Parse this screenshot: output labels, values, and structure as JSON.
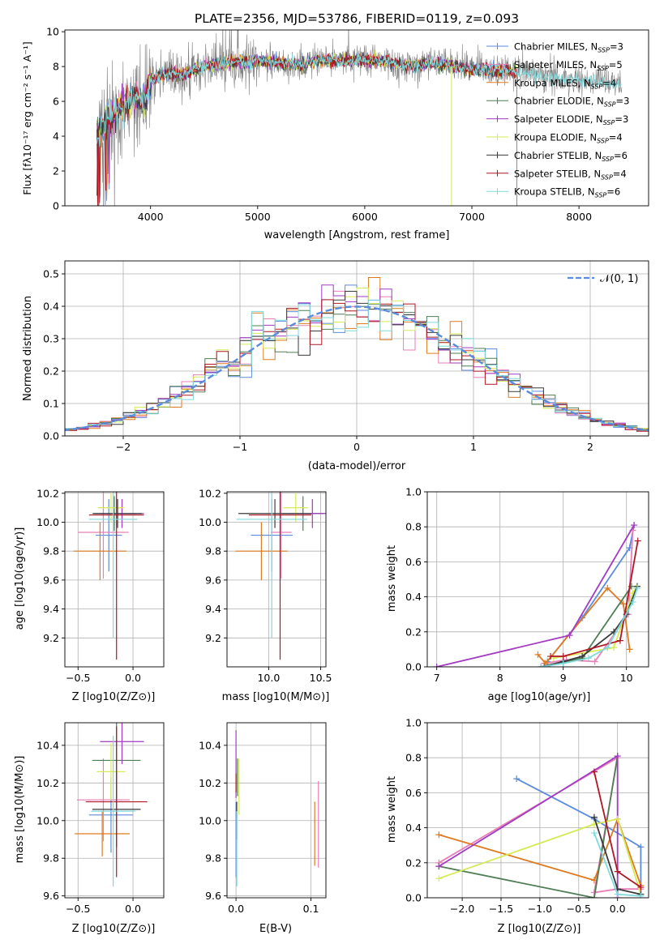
{
  "figure_title": "PLATE=2356, MJD=53786, FIBERID=0119, z=0.093",
  "colors": {
    "chabrier_miles": "#5b8bdc",
    "salpeter_miles": "#e87fb8",
    "kroupa_miles": "#e07a1f",
    "chabrier_elodie": "#4f7d55",
    "salpeter_elodie": "#a23ac2",
    "kroupa_elodie": "#d6ea55",
    "chabrier_stelib": "#3a3a3a",
    "salpeter_stelib": "#b01624",
    "kroupa_stelib": "#7fd9dc",
    "data_spectrum": "#808080",
    "grid": "#b0b0b0"
  },
  "chart_data": [
    {
      "id": "spectrum",
      "type": "line",
      "title": "PLATE=2356, MJD=53786, FIBERID=0119, z=0.093",
      "xlabel": "wavelength [Angstrom, rest frame]",
      "ylabel": "Flux [fλ10⁻¹⁷ erg cm⁻² s⁻¹ A⁻¹]",
      "xlim": [
        3200,
        8650
      ],
      "ylim": [
        0,
        10.1
      ],
      "xticks": [
        4000,
        5000,
        6000,
        7000,
        8000
      ],
      "yticks": [
        0,
        2,
        4,
        6,
        8,
        10
      ],
      "grid": false,
      "legend_position": "top-right",
      "legend": [
        "Chabrier MILES, N_SSP=3",
        "Salpeter MILES, N_SSP=5",
        "Kroupa MILES, N_SSP=4",
        "Chabrier ELODIE, N_SSP=3",
        "Salpeter ELODIE, N_SSP=3",
        "Kroupa ELODIE, N_SSP=4",
        "Chabrier STELIB, N_SSP=6",
        "Salpeter STELIB, N_SSP=4",
        "Kroupa STELIB, N_SSP=6"
      ],
      "continuum": {
        "x": [
          3500,
          3550,
          3600,
          3650,
          3700,
          3750,
          3800,
          3850,
          3900,
          3950,
          4000,
          4100,
          4200,
          4300,
          4400,
          4500,
          4600,
          4700,
          4800,
          4900,
          5000,
          5200,
          5400,
          5600,
          5800,
          6000,
          6200,
          6400,
          6600,
          6800,
          7000,
          7200,
          7400,
          7600,
          7800,
          8000,
          8200,
          8400
        ],
        "y": [
          4.2,
          4.6,
          5.0,
          5.3,
          5.6,
          5.8,
          6.0,
          6.1,
          6.2,
          6.0,
          7.2,
          7.5,
          7.6,
          7.5,
          7.8,
          8.0,
          8.1,
          8.2,
          8.3,
          8.3,
          8.3,
          8.2,
          8.1,
          8.4,
          8.3,
          8.4,
          8.3,
          8.0,
          8.2,
          8.1,
          7.8,
          7.8,
          7.7,
          7.5,
          7.3,
          7.2,
          7.1,
          7.0
        ]
      },
      "model_end_wavelength": 7420
    },
    {
      "id": "residual-histogram",
      "type": "bar",
      "xlabel": "(data-model)/error",
      "ylabel": "Normed distribution",
      "xlim": [
        -2.5,
        2.5
      ],
      "ylim": [
        0,
        0.54
      ],
      "xticks": [
        -2,
        -1,
        0,
        1,
        2
      ],
      "yticks": [
        0.0,
        0.1,
        0.2,
        0.3,
        0.4,
        0.5
      ],
      "grid": true,
      "legend_position": "top-right",
      "reference_curve": "𝒩(0, 1)",
      "bin_width": 0.1
    },
    {
      "id": "age-vs-Z",
      "type": "scatter",
      "xlabel": "Z [log10(Z/Z⊙)]",
      "ylabel": "age [log10(age/yr)]",
      "xlim": [
        -0.62,
        0.28
      ],
      "ylim": [
        9.0,
        10.21
      ],
      "xticks": [
        -0.5,
        0.0
      ],
      "yticks": [
        9.2,
        9.4,
        9.6,
        9.8,
        10.0,
        10.2
      ],
      "grid": true,
      "points": [
        {
          "model": "chabrier_miles",
          "x": -0.22,
          "y": 9.91,
          "xerr": 0.12,
          "yerr": 0.25
        },
        {
          "model": "salpeter_miles",
          "x": -0.27,
          "y": 9.93,
          "xerr": 0.23,
          "yerr": 0.32
        },
        {
          "model": "kroupa_miles",
          "x": -0.3,
          "y": 9.8,
          "xerr": 0.24,
          "yerr": 0.2
        },
        {
          "model": "chabrier_elodie",
          "x": -0.17,
          "y": 10.06,
          "xerr": 0.2,
          "yerr": 0.12
        },
        {
          "model": "salpeter_elodie",
          "x": -0.1,
          "y": 10.06,
          "xerr": 0.2,
          "yerr": 0.1
        },
        {
          "model": "kroupa_elodie",
          "x": -0.2,
          "y": 10.1,
          "xerr": 0.12,
          "yerr": 0.1
        },
        {
          "model": "chabrier_stelib",
          "x": -0.14,
          "y": 10.06,
          "xerr": 0.22,
          "yerr": 0.1
        },
        {
          "model": "salpeter_stelib",
          "x": -0.15,
          "y": 10.05,
          "xerr": 0.25,
          "yerr": 1.0
        },
        {
          "model": "kroupa_stelib",
          "x": -0.18,
          "y": 10.02,
          "xerr": 0.22,
          "yerr": 0.82
        }
      ]
    },
    {
      "id": "age-vs-mass",
      "type": "scatter",
      "xlabel": "mass [log10(M/M⊙)]",
      "ylabel": "",
      "xlim": [
        9.6,
        10.55
      ],
      "ylim": [
        9.0,
        10.21
      ],
      "xticks": [
        10.0,
        10.5
      ],
      "yticks": [
        9.2,
        9.4,
        9.6,
        9.8,
        10.0,
        10.2
      ],
      "grid": true,
      "points": [
        {
          "model": "chabrier_miles",
          "x": 10.03,
          "y": 9.91,
          "xerr": 0.2,
          "yerr": 0.25
        },
        {
          "model": "salpeter_miles",
          "x": 10.12,
          "y": 9.93,
          "xerr": 0.1,
          "yerr": 0.32
        },
        {
          "model": "kroupa_miles",
          "x": 9.93,
          "y": 9.8,
          "xerr": 0.25,
          "yerr": 0.2
        },
        {
          "model": "chabrier_elodie",
          "x": 10.33,
          "y": 10.06,
          "xerr": 0.2,
          "yerr": 0.12
        },
        {
          "model": "salpeter_elodie",
          "x": 10.42,
          "y": 10.06,
          "xerr": 0.22,
          "yerr": 0.1
        },
        {
          "model": "kroupa_elodie",
          "x": 10.26,
          "y": 10.1,
          "xerr": 0.12,
          "yerr": 0.1
        },
        {
          "model": "chabrier_stelib",
          "x": 10.06,
          "y": 10.06,
          "xerr": 0.35,
          "yerr": 0.1
        },
        {
          "model": "salpeter_stelib",
          "x": 10.11,
          "y": 10.05,
          "xerr": 0.3,
          "yerr": 1.0
        },
        {
          "model": "kroupa_stelib",
          "x": 10.03,
          "y": 10.02,
          "xerr": 0.34,
          "yerr": 0.82
        }
      ]
    },
    {
      "id": "weight-vs-age",
      "type": "line",
      "xlabel": "age [log10(age/yr)]",
      "ylabel": "mass weight",
      "xlim": [
        6.85,
        10.35
      ],
      "ylim": [
        0,
        1.0
      ],
      "xticks": [
        7,
        8,
        9,
        10
      ],
      "yticks": [
        0.0,
        0.2,
        0.4,
        0.6,
        0.8,
        1.0
      ],
      "grid": true,
      "series": [
        {
          "model": "chabrier_miles",
          "x": [
            8.75,
            9.3,
            10.05,
            10.12
          ],
          "y": [
            0.03,
            0.28,
            0.68,
            0.81
          ]
        },
        {
          "model": "salpeter_miles",
          "x": [
            8.7,
            9.05,
            9.5,
            10.03,
            10.1
          ],
          "y": [
            0.02,
            0.04,
            0.03,
            0.3,
            0.78
          ]
        },
        {
          "model": "kroupa_miles",
          "x": [
            8.6,
            8.72,
            9.7,
            9.95,
            10.05
          ],
          "y": [
            0.07,
            0.02,
            0.45,
            0.36,
            0.1
          ]
        },
        {
          "model": "chabrier_elodie",
          "x": [
            8.7,
            9.3,
            10.08
          ],
          "y": [
            0.0,
            0.05,
            0.46
          ]
        },
        {
          "model": "salpeter_elodie",
          "x": [
            7.0,
            9.1,
            10.12
          ],
          "y": [
            0.0,
            0.18,
            0.81
          ]
        },
        {
          "model": "kroupa_elodie",
          "x": [
            8.85,
            9.8,
            10.1,
            10.15
          ],
          "y": [
            0.05,
            0.11,
            0.42,
            0.45
          ]
        },
        {
          "model": "chabrier_stelib",
          "x": [
            8.65,
            9.0,
            9.3,
            9.8,
            10.0,
            10.17
          ],
          "y": [
            0.0,
            0.03,
            0.06,
            0.2,
            0.3,
            0.46
          ]
        },
        {
          "model": "salpeter_stelib",
          "x": [
            8.8,
            9.0,
            9.9,
            10.18
          ],
          "y": [
            0.06,
            0.06,
            0.15,
            0.72
          ]
        },
        {
          "model": "kroupa_stelib",
          "x": [
            8.65,
            9.0,
            9.4,
            9.7,
            10.1,
            10.17
          ],
          "y": [
            0.0,
            0.02,
            0.05,
            0.11,
            0.37,
            0.45
          ]
        }
      ]
    },
    {
      "id": "mass-vs-Z",
      "type": "scatter",
      "xlabel": "Z [log10(Z/Z⊙)]",
      "ylabel": "mass [log10(M/M⊙)]",
      "xlim": [
        -0.62,
        0.28
      ],
      "ylim": [
        9.59,
        10.52
      ],
      "xticks": [
        -0.5,
        0.0
      ],
      "yticks": [
        9.6,
        9.8,
        10.0,
        10.2,
        10.4
      ],
      "grid": true,
      "points": [
        {
          "model": "chabrier_miles",
          "x": -0.2,
          "y": 10.03,
          "xerr": 0.2,
          "yerr": 0.2
        },
        {
          "model": "salpeter_miles",
          "x": -0.27,
          "y": 10.11,
          "xerr": 0.24,
          "yerr": 0.22
        },
        {
          "model": "kroupa_miles",
          "x": -0.28,
          "y": 9.93,
          "xerr": 0.25,
          "yerr": 0.12
        },
        {
          "model": "chabrier_elodie",
          "x": -0.15,
          "y": 10.32,
          "xerr": 0.22,
          "yerr": 0.2
        },
        {
          "model": "salpeter_elodie",
          "x": -0.1,
          "y": 10.42,
          "xerr": 0.2,
          "yerr": 0.12
        },
        {
          "model": "kroupa_elodie",
          "x": -0.2,
          "y": 10.26,
          "xerr": 0.13,
          "yerr": 0.15
        },
        {
          "model": "chabrier_stelib",
          "x": -0.15,
          "y": 10.06,
          "xerr": 0.22,
          "yerr": 0.2
        },
        {
          "model": "salpeter_stelib",
          "x": -0.15,
          "y": 10.1,
          "xerr": 0.28,
          "yerr": 0.4
        },
        {
          "model": "kroupa_stelib",
          "x": -0.18,
          "y": 10.05,
          "xerr": 0.2,
          "yerr": 0.4
        }
      ]
    },
    {
      "id": "mass-vs-EBV",
      "type": "scatter",
      "xlabel": "E(B-V)",
      "ylabel": "",
      "xlim": [
        -0.012,
        0.12
      ],
      "ylim": [
        9.59,
        10.52
      ],
      "xticks": [
        0.0,
        0.1
      ],
      "yticks": [
        9.6,
        9.8,
        10.0,
        10.2,
        10.4
      ],
      "grid": true,
      "points": [
        {
          "model": "chabrier_miles",
          "x": 0.0,
          "y": 9.9,
          "yerr": 0.2
        },
        {
          "model": "salpeter_miles",
          "x": 0.11,
          "y": 9.98,
          "yerr": 0.23
        },
        {
          "model": "kroupa_miles",
          "x": 0.105,
          "y": 9.93,
          "yerr": 0.17
        },
        {
          "model": "chabrier_elodie",
          "x": 0.002,
          "y": 10.23,
          "yerr": 0.1
        },
        {
          "model": "salpeter_elodie",
          "x": 0.0,
          "y": 10.3,
          "yerr": 0.18
        },
        {
          "model": "kroupa_elodie",
          "x": 0.004,
          "y": 10.18,
          "yerr": 0.15
        },
        {
          "model": "chabrier_stelib",
          "x": 0.001,
          "y": 10.0,
          "yerr": 0.1
        },
        {
          "model": "salpeter_stelib",
          "x": 0.0,
          "y": 10.2,
          "yerr": 0.05
        },
        {
          "model": "kroupa_stelib",
          "x": 0.001,
          "y": 9.85,
          "yerr": 0.2
        }
      ]
    },
    {
      "id": "weight-vs-Z",
      "type": "line",
      "xlabel": "Z [log10(Z/Z⊙)]",
      "ylabel": "mass weight",
      "xlim": [
        -2.45,
        0.4
      ],
      "ylim": [
        0,
        1.0
      ],
      "xticks": [
        -2.0,
        -1.5,
        -1.0,
        -0.5,
        0.0
      ],
      "yticks": [
        0.0,
        0.2,
        0.4,
        0.6,
        0.8,
        1.0
      ],
      "grid": true,
      "series": [
        {
          "model": "chabrier_miles",
          "x": [
            -1.3,
            -0.3,
            0.3,
            0.3
          ],
          "y": [
            0.68,
            0.45,
            0.29,
            0.02
          ]
        },
        {
          "model": "salpeter_miles",
          "x": [
            -2.3,
            0.0,
            -0.3,
            0.0,
            0.3
          ],
          "y": [
            0.2,
            0.8,
            0.03,
            0.05,
            0.05
          ]
        },
        {
          "model": "kroupa_miles",
          "x": [
            -2.3,
            -0.3,
            0.0,
            0.3
          ],
          "y": [
            0.36,
            0.1,
            0.45,
            0.07
          ]
        },
        {
          "model": "chabrier_elodie",
          "x": [
            -2.3,
            -0.3,
            0.0
          ],
          "y": [
            0.18,
            0.0,
            0.81
          ]
        },
        {
          "model": "salpeter_elodie",
          "x": [
            -2.3,
            0.0,
            0.0
          ],
          "y": [
            0.18,
            0.81,
            0.0
          ]
        },
        {
          "model": "kroupa_elodie",
          "x": [
            -2.3,
            -0.3,
            0.0,
            0.3
          ],
          "y": [
            0.11,
            0.42,
            0.45,
            0.02
          ]
        },
        {
          "model": "chabrier_stelib",
          "x": [
            -0.3,
            0.0,
            0.3
          ],
          "y": [
            0.46,
            0.05,
            0.02
          ]
        },
        {
          "model": "salpeter_stelib",
          "x": [
            -0.3,
            0.0,
            0.3
          ],
          "y": [
            0.72,
            0.15,
            0.06
          ]
        },
        {
          "model": "kroupa_stelib",
          "x": [
            -0.3,
            0.0,
            0.3
          ],
          "y": [
            0.37,
            0.02,
            0.01
          ]
        }
      ]
    }
  ]
}
